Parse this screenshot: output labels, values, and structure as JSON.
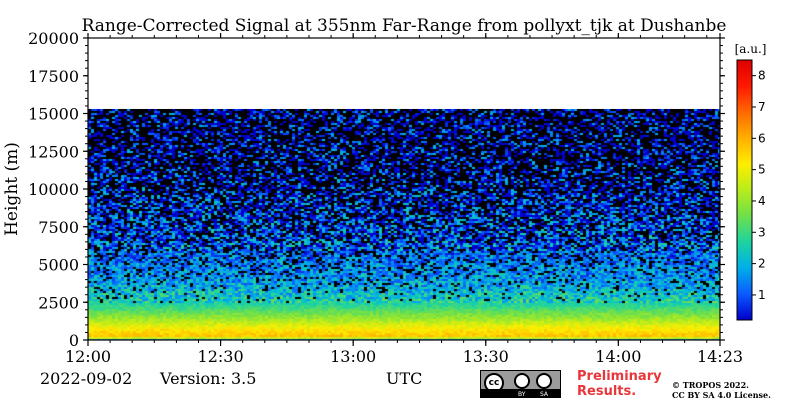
{
  "chart_data": {
    "type": "heatmap",
    "title": "Range-Corrected Signal at 355nm Far-Range from pollyxt_tjk at Dushanbe",
    "xlabel": "UTC",
    "ylabel": "Height (m)",
    "x_ticks": [
      "12:00",
      "12:30",
      "13:00",
      "13:30",
      "14:00",
      "14:23"
    ],
    "x_tick_minutes": [
      0,
      30,
      60,
      90,
      120,
      143
    ],
    "x_range_minutes": [
      0,
      143
    ],
    "y_ticks": [
      0,
      2500,
      5000,
      7500,
      10000,
      12500,
      15000,
      17500,
      20000
    ],
    "ylim": [
      0,
      20000
    ],
    "data_top_height": 15300,
    "colorbar": {
      "label": "[a.u.]",
      "ticks": [
        1,
        2,
        3,
        4,
        5,
        6,
        7,
        8
      ],
      "range": [
        0.2,
        8.5
      ],
      "colormap": [
        "#0000cd",
        "#0a5cff",
        "#00b0e8",
        "#1ed4a0",
        "#6fe04a",
        "#b8ec1c",
        "#ffee00",
        "#ffb000",
        "#ff6a00",
        "#ff1a00",
        "#e00000"
      ]
    },
    "signal_profile": [
      {
        "height": 0,
        "value": 0.2
      },
      {
        "height": 250,
        "value": 5.8
      },
      {
        "height": 800,
        "value": 5.2
      },
      {
        "height": 1500,
        "value": 4.0
      },
      {
        "height": 2500,
        "value": 2.6
      },
      {
        "height": 4000,
        "value": 1.7
      },
      {
        "height": 6000,
        "value": 1.2
      },
      {
        "height": 8000,
        "value": 0.9
      },
      {
        "height": 10000,
        "value": 0.6
      },
      {
        "height": 12500,
        "value": 0.4
      },
      {
        "height": 15300,
        "value": 0.3
      }
    ],
    "grid": false
  },
  "footer": {
    "date": "2022-09-02",
    "version": "Version: 3.5",
    "utc_label": "UTC",
    "preliminary_line1": "Preliminary",
    "preliminary_line2": "Results.",
    "copyright_line1": "© TROPOS 2022.",
    "copyright_line2": "CC BY SA 4.0 License.",
    "license_badge": {
      "cc": "cc",
      "by": "BY",
      "sa": "SA"
    }
  }
}
